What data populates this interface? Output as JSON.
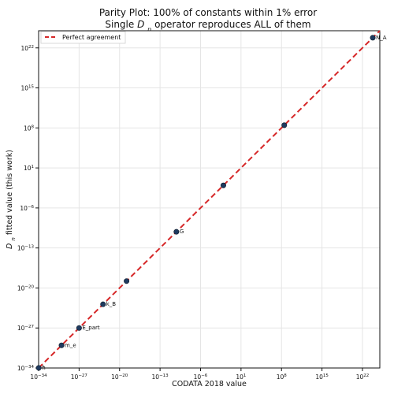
{
  "chart_data": {
    "type": "scatter",
    "title_line1": "Parity Plot: 100% of constants within 1% error",
    "title_line2_prefix": "Single ",
    "title_line2_symbol": "D",
    "title_line2_subscript": "n",
    "title_line2_suffix": " operator reproduces ALL of them",
    "xlabel": "CODATA 2018 value",
    "ylabel_symbol": "D",
    "ylabel_subscript": "n",
    "ylabel_suffix": " fitted value (this work)",
    "xscale": "log",
    "yscale": "log",
    "xlim_exp": [
      -34,
      25
    ],
    "ylim_exp": [
      -34,
      25
    ],
    "x_ticks": [
      -34,
      -27,
      -20,
      -13,
      -6,
      1,
      8,
      15,
      22
    ],
    "y_ticks": [
      -34,
      -27,
      -20,
      -13,
      -6,
      1,
      8,
      15,
      22
    ],
    "tick_base": "10",
    "grid": true,
    "legend": {
      "position": "top-left",
      "entries": [
        {
          "label": "Perfect agreement",
          "color": "#d62728",
          "style": "dashed"
        }
      ]
    },
    "line": {
      "name": "Perfect agreement",
      "start_exp": -34,
      "end_exp": 25
    },
    "points": [
      {
        "label": "ħ",
        "x": 1.0546e-34,
        "y": 1.0546e-34
      },
      {
        "label": "m_e",
        "x": 9.109e-31,
        "y": 9.109e-31
      },
      {
        "label": "E_part",
        "x": 1e-27,
        "y": 1e-27
      },
      {
        "label": "k_B",
        "x": 1.380649e-23,
        "y": 1.380649e-23
      },
      {
        "label": "",
        "x": 1.602e-19,
        "y": 1.602e-19
      },
      {
        "label": "G",
        "x": 6.674e-11,
        "y": 6.674e-11
      },
      {
        "label": "",
        "x": 0.008854,
        "y": 0.008854
      },
      {
        "label": "",
        "x": 299800000.0,
        "y": 299800000.0
      },
      {
        "label": "N_A",
        "x": 6.022e+23,
        "y": 6.022e+23
      }
    ],
    "colors": {
      "point_fill": "#1f3a5f",
      "point_edge": "#0d1b2a",
      "line": "#d62728",
      "grid": "#e5e5e5",
      "axis": "#111111"
    }
  }
}
